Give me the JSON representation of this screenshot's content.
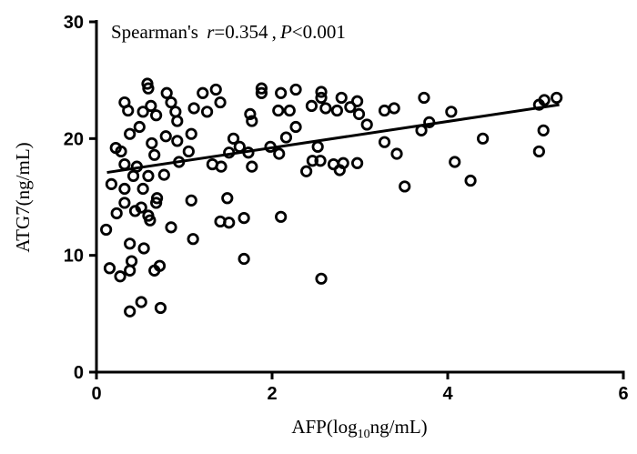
{
  "chart_data": {
    "type": "scatter",
    "title": "",
    "annotation": {
      "prefix": "Spearman's ",
      "r_symbol": "r",
      "r_value": "=0.354 ,",
      "p_symbol": "P",
      "p_value": "<0.001"
    },
    "xlabel": {
      "main": "AFP(log",
      "sub": "10",
      "rest": "ng/mL)"
    },
    "ylabel": "ATG7(ng/mL)",
    "xlim": [
      0,
      6
    ],
    "ylim": [
      0,
      30
    ],
    "xticks": [
      "0",
      "2",
      "4",
      "6"
    ],
    "yticks": [
      "0",
      "10",
      "20",
      "30"
    ],
    "grid": false,
    "marker": "open-circle",
    "color": "#000000",
    "regression_line": {
      "x": [
        0.12,
        5.27
      ],
      "y": [
        17.1,
        22.9
      ]
    },
    "points": [
      [
        2.1,
        23.9
      ],
      [
        2.27,
        24.2
      ],
      [
        2.07,
        22.4
      ],
      [
        2.2,
        22.4
      ],
      [
        2.56,
        24.0
      ],
      [
        2.56,
        23.5
      ],
      [
        2.45,
        22.8
      ],
      [
        2.61,
        22.6
      ],
      [
        2.79,
        23.5
      ],
      [
        2.74,
        22.4
      ],
      [
        2.89,
        22.7
      ],
      [
        2.97,
        23.2
      ],
      [
        2.99,
        22.1
      ],
      [
        3.08,
        21.2
      ],
      [
        2.27,
        21.0
      ],
      [
        2.16,
        20.1
      ],
      [
        1.98,
        19.3
      ],
      [
        2.08,
        18.7
      ],
      [
        2.52,
        19.3
      ],
      [
        2.46,
        18.1
      ],
      [
        2.55,
        18.1
      ],
      [
        2.39,
        17.2
      ],
      [
        2.7,
        17.8
      ],
      [
        2.81,
        17.9
      ],
      [
        2.77,
        17.3
      ],
      [
        2.97,
        17.9
      ],
      [
        3.28,
        22.4
      ],
      [
        3.39,
        22.6
      ],
      [
        3.28,
        19.7
      ],
      [
        3.42,
        18.7
      ],
      [
        3.51,
        15.9
      ],
      [
        3.73,
        23.5
      ],
      [
        3.79,
        21.4
      ],
      [
        3.7,
        20.7
      ],
      [
        4.04,
        22.3
      ],
      [
        4.08,
        18.0
      ],
      [
        4.26,
        16.4
      ],
      [
        4.4,
        20.0
      ],
      [
        5.04,
        22.9
      ],
      [
        5.1,
        23.3
      ],
      [
        5.24,
        23.5
      ],
      [
        5.09,
        20.7
      ],
      [
        5.04,
        18.9
      ],
      [
        2.1,
        13.3
      ],
      [
        2.56,
        8.0
      ],
      [
        0.58,
        24.7
      ],
      [
        0.59,
        24.3
      ],
      [
        0.32,
        23.1
      ],
      [
        0.36,
        22.4
      ],
      [
        0.8,
        23.9
      ],
      [
        0.85,
        23.1
      ],
      [
        0.62,
        22.8
      ],
      [
        0.53,
        22.3
      ],
      [
        0.68,
        22.0
      ],
      [
        0.9,
        22.3
      ],
      [
        0.92,
        21.5
      ],
      [
        1.21,
        23.9
      ],
      [
        1.36,
        24.2
      ],
      [
        1.41,
        23.1
      ],
      [
        1.11,
        22.6
      ],
      [
        1.26,
        22.3
      ],
      [
        1.88,
        24.3
      ],
      [
        1.88,
        23.9
      ],
      [
        1.75,
        22.1
      ],
      [
        1.77,
        21.5
      ],
      [
        1.56,
        20.0
      ],
      [
        1.63,
        19.3
      ],
      [
        1.51,
        18.8
      ],
      [
        1.73,
        18.8
      ],
      [
        1.77,
        17.6
      ],
      [
        1.32,
        17.8
      ],
      [
        1.42,
        17.6
      ],
      [
        1.05,
        18.9
      ],
      [
        1.08,
        20.4
      ],
      [
        0.94,
        18.0
      ],
      [
        0.79,
        20.2
      ],
      [
        0.92,
        19.8
      ],
      [
        0.22,
        19.2
      ],
      [
        0.28,
        18.9
      ],
      [
        0.38,
        20.4
      ],
      [
        0.49,
        21.0
      ],
      [
        0.63,
        19.6
      ],
      [
        0.66,
        18.6
      ],
      [
        0.32,
        17.8
      ],
      [
        0.46,
        17.6
      ],
      [
        0.42,
        16.8
      ],
      [
        0.59,
        16.8
      ],
      [
        0.77,
        16.9
      ],
      [
        0.17,
        16.1
      ],
      [
        0.32,
        15.7
      ],
      [
        0.53,
        15.7
      ],
      [
        0.32,
        14.5
      ],
      [
        0.69,
        14.9
      ],
      [
        0.68,
        14.5
      ],
      [
        0.23,
        13.6
      ],
      [
        0.44,
        13.8
      ],
      [
        0.51,
        14.1
      ],
      [
        0.59,
        13.4
      ],
      [
        0.61,
        13.0
      ],
      [
        0.85,
        12.4
      ],
      [
        0.11,
        12.2
      ],
      [
        1.08,
        14.7
      ],
      [
        1.49,
        14.9
      ],
      [
        1.41,
        12.9
      ],
      [
        1.51,
        12.8
      ],
      [
        1.68,
        13.2
      ],
      [
        1.1,
        11.4
      ],
      [
        0.38,
        11.0
      ],
      [
        0.54,
        10.6
      ],
      [
        0.15,
        8.9
      ],
      [
        0.27,
        8.2
      ],
      [
        0.38,
        8.7
      ],
      [
        0.4,
        9.5
      ],
      [
        0.66,
        8.7
      ],
      [
        0.72,
        9.1
      ],
      [
        1.68,
        9.7
      ],
      [
        0.51,
        6.0
      ],
      [
        0.38,
        5.2
      ],
      [
        0.73,
        5.5
      ]
    ]
  }
}
